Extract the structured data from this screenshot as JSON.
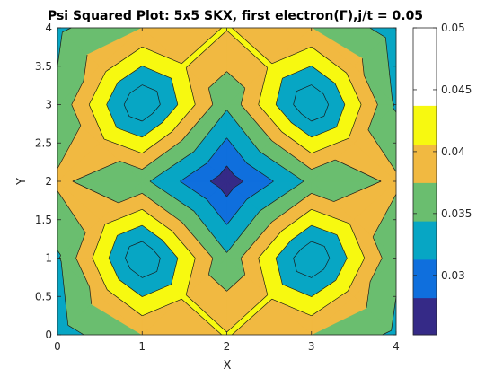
{
  "chart_data": {
    "type": "contourf",
    "title": "Psi Squared Plot: 5x5 SKX, first electron(Γ),j/t = 0.05",
    "xlabel": "X",
    "ylabel": "Y",
    "xlim": [
      0,
      4
    ],
    "ylim": [
      0,
      4
    ],
    "x_ticks": [
      "0",
      "1",
      "2",
      "3",
      "4"
    ],
    "y_ticks": [
      "0",
      "0.5",
      "1",
      "1.5",
      "2",
      "2.5",
      "3",
      "3.5",
      "4"
    ],
    "colormap": "parula",
    "colorbar": {
      "range": [
        0.0252,
        0.05
      ],
      "ticks": [
        "0.03",
        "0.035",
        "0.04",
        "0.045",
        "0.05"
      ]
    },
    "contour_levels": [
      0.0252,
      0.0282,
      0.0313,
      0.0344,
      0.0375,
      0.0406,
      0.0437,
      0.0468
    ],
    "level_colors": [
      "#352a87",
      "#0f6fdd",
      "#07a6c4",
      "#6abe6f",
      "#f1b941",
      "#f7f910"
    ],
    "grid": {
      "x": [
        0,
        1,
        2,
        3,
        4
      ],
      "y": [
        0,
        1,
        2,
        3,
        4
      ],
      "z": [
        [
          0.033,
          0.0375,
          0.0408,
          0.0375,
          0.0338
        ],
        [
          0.034,
          0.05,
          0.035,
          0.05,
          0.035
        ],
        [
          0.038,
          0.0352,
          0.0265,
          0.0352,
          0.038
        ],
        [
          0.035,
          0.05,
          0.035,
          0.05,
          0.034
        ],
        [
          0.0338,
          0.0375,
          0.0408,
          0.0375,
          0.033
        ]
      ]
    }
  }
}
